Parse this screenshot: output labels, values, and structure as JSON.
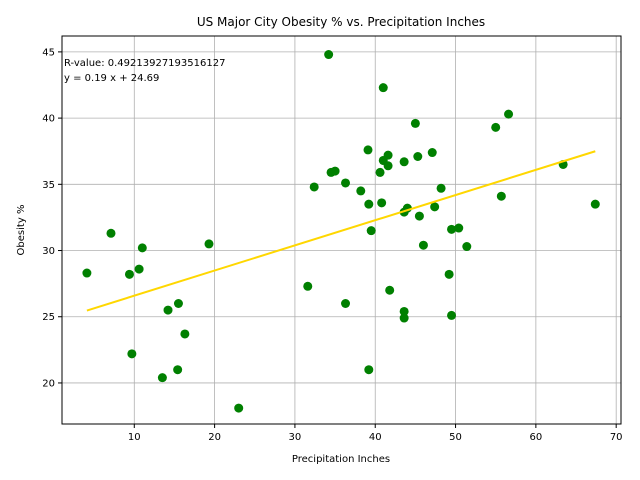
{
  "chart_data": {
    "type": "scatter",
    "title": "US Major City Obesity % vs. Precipitation Inches",
    "xlabel": "Precipitation Inches",
    "ylabel": "Obesity %",
    "xlim": [
      1.0,
      70.6
    ],
    "ylim": [
      16.9,
      46.2
    ],
    "xticks": [
      10,
      20,
      30,
      40,
      50,
      60,
      70
    ],
    "yticks": [
      20,
      25,
      30,
      35,
      40,
      45
    ],
    "grid": true,
    "annotations": [
      "R-value: 0.49213927193516127",
      "y = 0.19 x + 24.69"
    ],
    "regression": {
      "slope": 0.19,
      "intercept": 24.69,
      "x_range": [
        4.1,
        67.4
      ]
    },
    "colors": {
      "points": "#008000",
      "line": "#ffd700",
      "grid": "#b0b0b0"
    },
    "points": [
      [
        4.1,
        28.3
      ],
      [
        7.1,
        31.3
      ],
      [
        9.4,
        28.2
      ],
      [
        9.7,
        22.2
      ],
      [
        10.6,
        28.6
      ],
      [
        11.0,
        30.2
      ],
      [
        13.5,
        20.4
      ],
      [
        14.2,
        25.5
      ],
      [
        15.4,
        21.0
      ],
      [
        15.5,
        26.0
      ],
      [
        16.3,
        23.7
      ],
      [
        19.3,
        30.5
      ],
      [
        23.0,
        18.1
      ],
      [
        31.6,
        27.3
      ],
      [
        32.4,
        34.8
      ],
      [
        34.2,
        44.8
      ],
      [
        34.5,
        35.9
      ],
      [
        35.0,
        36.0
      ],
      [
        36.3,
        35.1
      ],
      [
        36.3,
        26.0
      ],
      [
        38.2,
        34.5
      ],
      [
        39.1,
        37.6
      ],
      [
        39.2,
        33.5
      ],
      [
        39.5,
        31.5
      ],
      [
        39.2,
        21.0
      ],
      [
        40.6,
        35.9
      ],
      [
        40.8,
        33.6
      ],
      [
        41.0,
        36.8
      ],
      [
        41.0,
        42.3
      ],
      [
        41.6,
        37.2
      ],
      [
        41.6,
        36.4
      ],
      [
        41.8,
        27.0
      ],
      [
        43.6,
        36.7
      ],
      [
        43.6,
        32.9
      ],
      [
        43.6,
        25.4
      ],
      [
        43.6,
        24.9
      ],
      [
        44.0,
        33.2
      ],
      [
        45.0,
        39.6
      ],
      [
        45.3,
        37.1
      ],
      [
        45.5,
        32.6
      ],
      [
        46.0,
        30.4
      ],
      [
        47.1,
        37.4
      ],
      [
        47.4,
        33.3
      ],
      [
        48.2,
        34.7
      ],
      [
        49.2,
        28.2
      ],
      [
        49.5,
        31.6
      ],
      [
        49.5,
        25.1
      ],
      [
        50.4,
        31.7
      ],
      [
        51.4,
        30.3
      ],
      [
        55.0,
        39.3
      ],
      [
        55.7,
        34.1
      ],
      [
        56.6,
        40.3
      ],
      [
        63.4,
        36.5
      ],
      [
        67.4,
        33.5
      ]
    ]
  }
}
